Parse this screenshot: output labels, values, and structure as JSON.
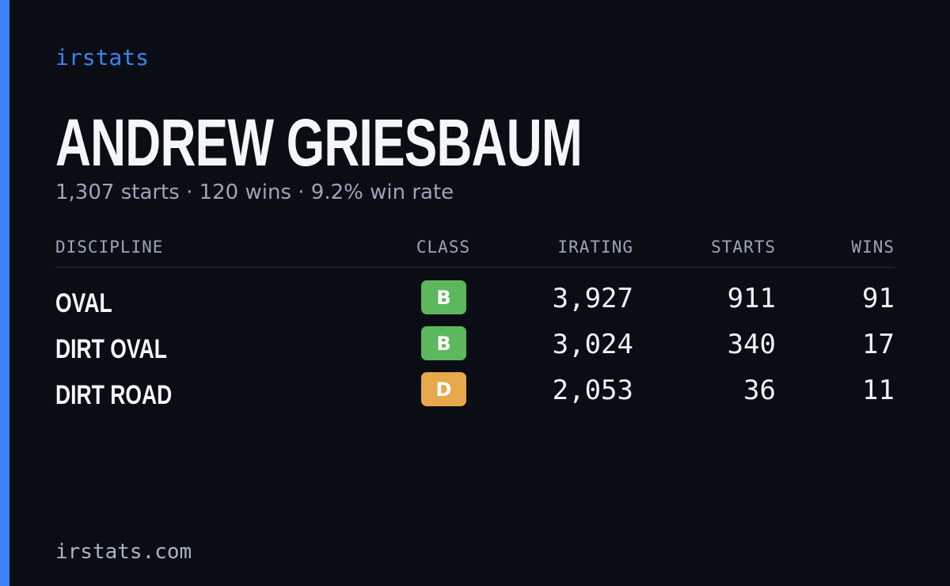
{
  "brand": "irstats",
  "driver": {
    "name": "ANDREW GRIESBAUM",
    "summary": "1,307 starts · 120 wins · 9.2% win rate"
  },
  "table": {
    "headers": [
      "DISCIPLINE",
      "CLASS",
      "IRATING",
      "STARTS",
      "WINS"
    ],
    "rows": [
      [
        "OVAL",
        "B",
        "3,927",
        "911",
        "91"
      ],
      [
        "DIRT OVAL",
        "B",
        "3,024",
        "340",
        "17"
      ],
      [
        "DIRT ROAD",
        "D",
        "2,053",
        "36",
        "11"
      ]
    ]
  },
  "footer": "irstats.com"
}
